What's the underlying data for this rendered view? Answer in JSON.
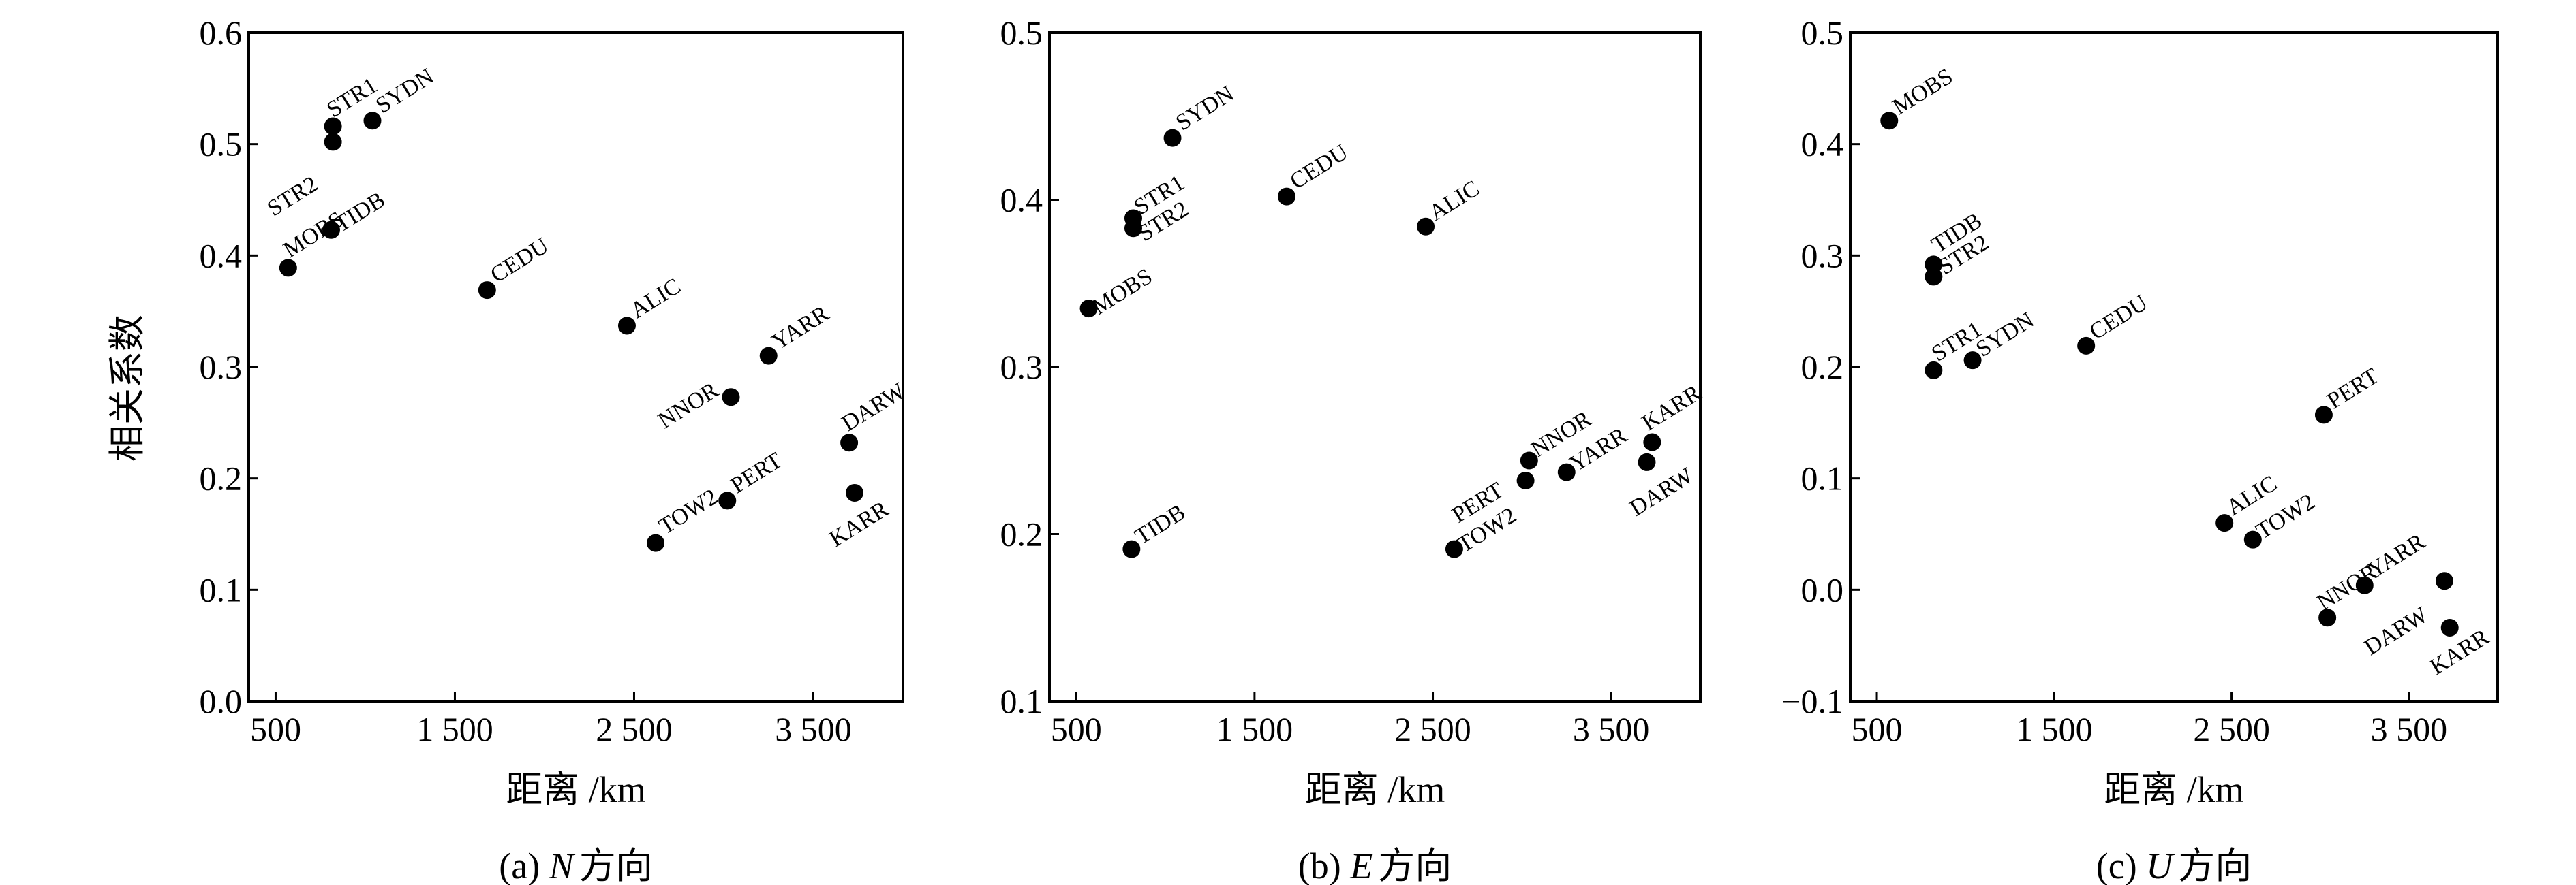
{
  "shared_ylabel": "相关系数",
  "chart_data": [
    {
      "type": "scatter",
      "caption_prefix": "(a) ",
      "caption_letter": "N",
      "caption_suffix": "方向",
      "xlabel": "距离 /km",
      "ylabel": "相关系数",
      "xlim": [
        350,
        4000
      ],
      "ylim": [
        0.0,
        0.6
      ],
      "x_ticks": [
        500,
        1500,
        2500,
        3500
      ],
      "x_tick_labels": [
        "500",
        "1 500",
        "2 500",
        "3 500"
      ],
      "y_ticks": [
        0.0,
        0.1,
        0.2,
        0.3,
        0.4,
        0.5,
        0.6
      ],
      "y_tick_labels": [
        "0.0",
        "0.1",
        "0.2",
        "0.3",
        "0.4",
        "0.5",
        "0.6"
      ],
      "grid": false,
      "points": [
        {
          "label": "STR1",
          "x": 820,
          "y": 0.516
        },
        {
          "label": "SYDN",
          "x": 1040,
          "y": 0.521
        },
        {
          "label": "STR2",
          "x": 820,
          "y": 0.502
        },
        {
          "label": "TIDB",
          "x": 810,
          "y": 0.423
        },
        {
          "label": "MOBS",
          "x": 570,
          "y": 0.389
        },
        {
          "label": "CEDU",
          "x": 1680,
          "y": 0.369
        },
        {
          "label": "ALIC",
          "x": 2460,
          "y": 0.337
        },
        {
          "label": "YARR",
          "x": 3250,
          "y": 0.31
        },
        {
          "label": "NNOR",
          "x": 3040,
          "y": 0.273
        },
        {
          "label": "DARW",
          "x": 3700,
          "y": 0.232
        },
        {
          "label": "PERT",
          "x": 3020,
          "y": 0.18
        },
        {
          "label": "KARR",
          "x": 3730,
          "y": 0.187
        },
        {
          "label": "TOW2",
          "x": 2620,
          "y": 0.142
        }
      ]
    },
    {
      "type": "scatter",
      "caption_prefix": "(b) ",
      "caption_letter": "E",
      "caption_suffix": "方向",
      "xlabel": "距离 /km",
      "ylabel": "",
      "xlim": [
        350,
        4000
      ],
      "ylim": [
        0.1,
        0.5
      ],
      "x_ticks": [
        500,
        1500,
        2500,
        3500
      ],
      "x_tick_labels": [
        "500",
        "1 500",
        "2 500",
        "3 500"
      ],
      "y_ticks": [
        0.1,
        0.2,
        0.3,
        0.4,
        0.5
      ],
      "y_tick_labels": [
        "0.1",
        "0.2",
        "0.3",
        "0.4",
        "0.5"
      ],
      "grid": false,
      "points": [
        {
          "label": "SYDN",
          "x": 1040,
          "y": 0.437
        },
        {
          "label": "CEDU",
          "x": 1680,
          "y": 0.402
        },
        {
          "label": "STR1",
          "x": 820,
          "y": 0.389
        },
        {
          "label": "STR2",
          "x": 820,
          "y": 0.383
        },
        {
          "label": "ALIC",
          "x": 2460,
          "y": 0.384
        },
        {
          "label": "MOBS",
          "x": 570,
          "y": 0.335
        },
        {
          "label": "TIDB",
          "x": 810,
          "y": 0.191
        },
        {
          "label": "TOW2",
          "x": 2620,
          "y": 0.191
        },
        {
          "label": "PERT",
          "x": 3020,
          "y": 0.232
        },
        {
          "label": "NNOR",
          "x": 3040,
          "y": 0.244
        },
        {
          "label": "YARR",
          "x": 3250,
          "y": 0.237
        },
        {
          "label": "KARR",
          "x": 3730,
          "y": 0.255
        },
        {
          "label": "DARW",
          "x": 3700,
          "y": 0.243
        }
      ]
    },
    {
      "type": "scatter",
      "caption_prefix": "(c) ",
      "caption_letter": "U",
      "caption_suffix": "方向",
      "xlabel": "距离 /km",
      "ylabel": "",
      "xlim": [
        350,
        4000
      ],
      "ylim": [
        -0.1,
        0.5
      ],
      "x_ticks": [
        500,
        1500,
        2500,
        3500
      ],
      "x_tick_labels": [
        "500",
        "1 500",
        "2 500",
        "3 500"
      ],
      "y_ticks": [
        -0.1,
        0.0,
        0.1,
        0.2,
        0.3,
        0.4,
        0.5
      ],
      "y_tick_labels": [
        "−0.1",
        "0.0",
        "0.1",
        "0.2",
        "0.3",
        "0.4",
        "0.5"
      ],
      "grid": false,
      "points": [
        {
          "label": "MOBS",
          "x": 570,
          "y": 0.421
        },
        {
          "label": "TIDB",
          "x": 820,
          "y": 0.292
        },
        {
          "label": "STR2",
          "x": 820,
          "y": 0.281
        },
        {
          "label": "STR1",
          "x": 820,
          "y": 0.197
        },
        {
          "label": "SYDN",
          "x": 1040,
          "y": 0.206
        },
        {
          "label": "CEDU",
          "x": 1680,
          "y": 0.219
        },
        {
          "label": "PERT",
          "x": 3020,
          "y": 0.157
        },
        {
          "label": "ALIC",
          "x": 2460,
          "y": 0.06
        },
        {
          "label": "TOW2",
          "x": 2620,
          "y": 0.045
        },
        {
          "label": "NNOR",
          "x": 3040,
          "y": -0.025
        },
        {
          "label": "YARR",
          "x": 3250,
          "y": 0.004
        },
        {
          "label": "DARW",
          "x": 3700,
          "y": 0.008
        },
        {
          "label": "KARR",
          "x": 3730,
          "y": -0.034
        }
      ]
    }
  ]
}
